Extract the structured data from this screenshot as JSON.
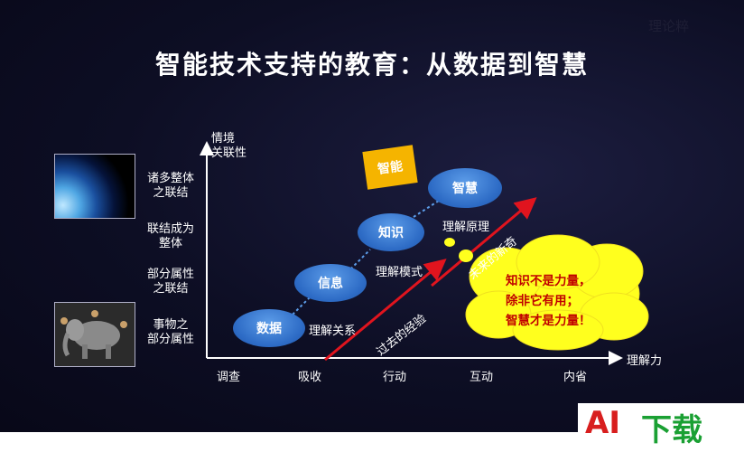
{
  "watermark_top": "理论粹",
  "title": "智能技术支持的教育：从数据到智慧",
  "axes": {
    "y_title": [
      "情境",
      "关联性"
    ],
    "x_title": "理解力",
    "y_levels": [
      [
        "诸多整体",
        "之联结"
      ],
      [
        "联结成为",
        "整体"
      ],
      [
        "部分属性",
        "之联结"
      ],
      [
        "事物之",
        "部分属性"
      ]
    ],
    "x_levels": [
      "调查",
      "吸收",
      "行动",
      "互动",
      "内省"
    ]
  },
  "steps": [
    {
      "node": "数据",
      "label": "理解关系"
    },
    {
      "node": "信息",
      "label": "理解模式"
    },
    {
      "node": "知识",
      "label": "理解原理"
    },
    {
      "node": "智慧",
      "label": ""
    }
  ],
  "intelligence_box": "智能",
  "arrows": {
    "past": "过去的经验",
    "future": "未来的新奇"
  },
  "cloud_text": [
    "知识不是力量，",
    "除非它有用；",
    "智慧才是力量！"
  ],
  "logo": {
    "ai": "AI",
    "download": "下载"
  },
  "colors": {
    "node_blue": "#2e6cc6",
    "intelligence": "#f5b400",
    "arrow_red": "#e0141e",
    "cloud_yellow": "#ffff1e",
    "logo_red": "#d81e1e",
    "logo_green": "#1aa033"
  }
}
